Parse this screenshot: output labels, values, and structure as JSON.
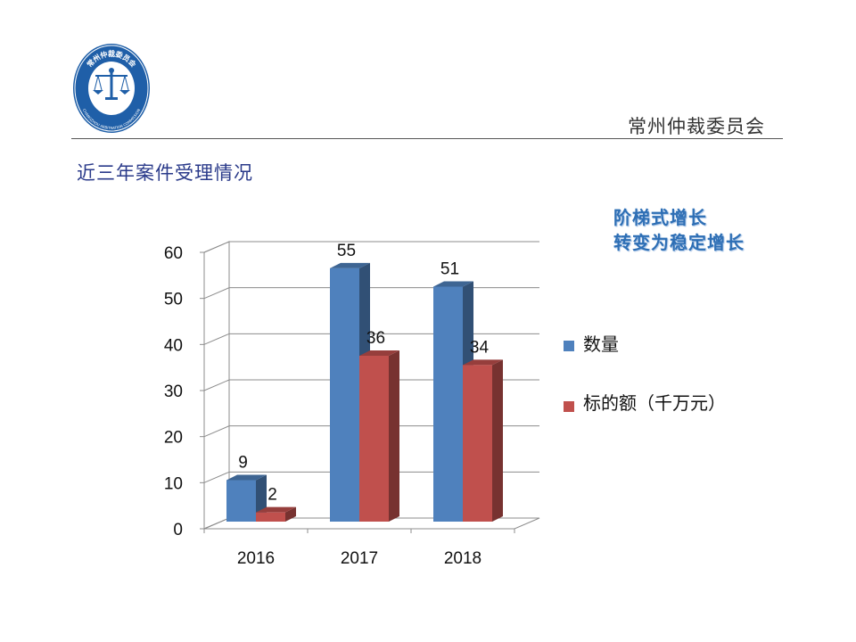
{
  "header": {
    "organization": "常州仲裁委员会",
    "logo_text_top": "常州仲裁委员会",
    "logo_text_bottom": "CHANGZHOU ARBITRATION COMMISSION"
  },
  "section_title": "近三年案件受理情况",
  "callout": {
    "line1": "阶梯式增长",
    "line2": "转变为稳定增长"
  },
  "colors": {
    "series_count": "#4f81bd",
    "series_amount": "#c0504d",
    "logo_blue": "#1f5fa8",
    "callout": "#2e6fb5"
  },
  "chart_data": {
    "type": "bar",
    "categories": [
      "2016",
      "2017",
      "2018"
    ],
    "series": [
      {
        "name": "数量",
        "values": [
          9,
          55,
          51
        ]
      },
      {
        "name": "标的额（千万元）",
        "values": [
          2,
          36,
          34
        ]
      }
    ],
    "title": "",
    "xlabel": "",
    "ylabel": "",
    "ylim": [
      0,
      60
    ],
    "yticks": [
      0,
      10,
      20,
      30,
      40,
      50,
      60
    ],
    "grid": true,
    "legend": "right",
    "style": "3d-clustered-column"
  }
}
